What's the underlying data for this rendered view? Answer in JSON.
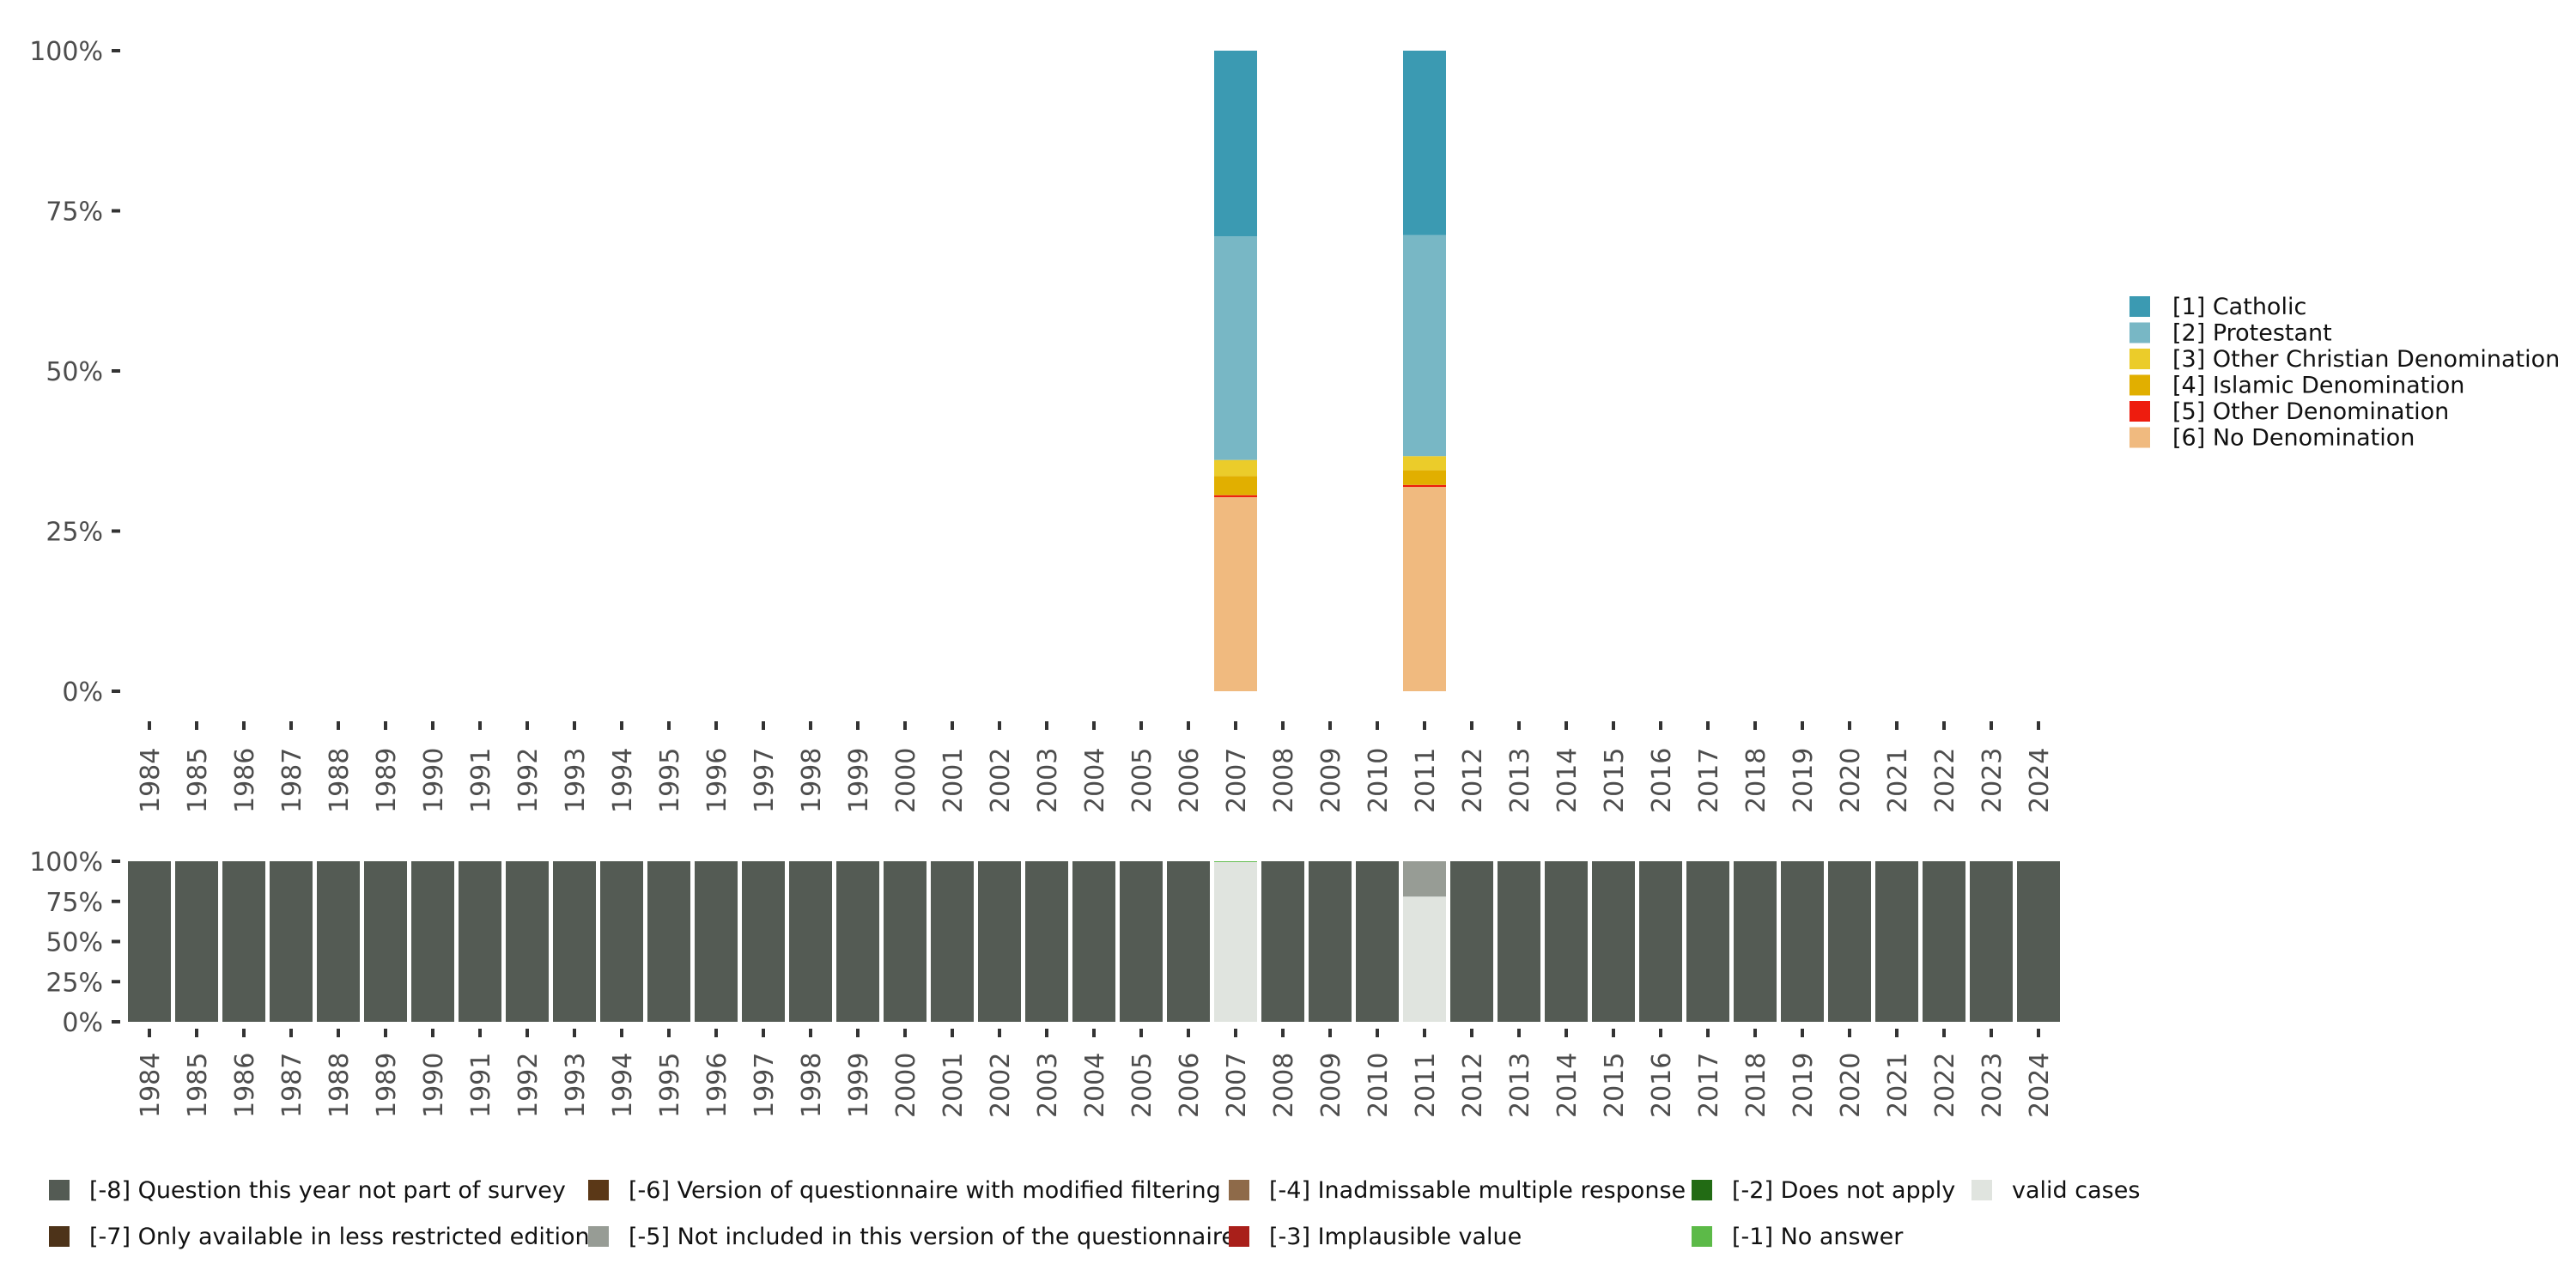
{
  "chart_data": [
    {
      "type": "bar",
      "stacked": true,
      "title": "",
      "xlabel": "",
      "ylabel": "",
      "ylim": [
        0,
        100
      ],
      "y_ticks": [
        "0%",
        "25%",
        "50%",
        "75%",
        "100%"
      ],
      "categories": [
        "1984",
        "1985",
        "1986",
        "1987",
        "1988",
        "1989",
        "1990",
        "1991",
        "1992",
        "1993",
        "1994",
        "1995",
        "1996",
        "1997",
        "1998",
        "1999",
        "2000",
        "2001",
        "2002",
        "2003",
        "2004",
        "2005",
        "2006",
        "2007",
        "2008",
        "2009",
        "2010",
        "2011",
        "2012",
        "2013",
        "2014",
        "2015",
        "2016",
        "2017",
        "2018",
        "2019",
        "2020",
        "2021",
        "2022",
        "2023",
        "2024"
      ],
      "legend_position": "right",
      "series": [
        {
          "name": "[6] No Denomination",
          "color": "#F0BA7F",
          "values": {
            "2007": 30.3,
            "2011": 31.9
          }
        },
        {
          "name": "[5] Other Denomination",
          "color": "#EE1C0E",
          "values": {
            "2007": 0.3,
            "2011": 0.3
          }
        },
        {
          "name": "[4] Islamic Denomination",
          "color": "#E1AF00",
          "values": {
            "2007": 3.0,
            "2011": 2.3
          }
        },
        {
          "name": "[3] Other Christian Denomination",
          "color": "#EBCC2A",
          "values": {
            "2007": 2.5,
            "2011": 2.2
          }
        },
        {
          "name": "[2] Protestant",
          "color": "#78B7C5",
          "values": {
            "2007": 34.9,
            "2011": 34.5
          }
        },
        {
          "name": "[1] Catholic",
          "color": "#3B9AB2",
          "values": {
            "2007": 29.0,
            "2011": 28.8
          }
        }
      ],
      "legend_order": [
        "[1] Catholic",
        "[2] Protestant",
        "[3] Other Christian Denomination",
        "[4] Islamic Denomination",
        "[5] Other Denomination",
        "[6] No Denomination"
      ]
    },
    {
      "type": "bar",
      "stacked": true,
      "ylim": [
        0,
        100
      ],
      "y_ticks": [
        "0%",
        "25%",
        "50%",
        "75%",
        "100%"
      ],
      "legend_position": "bottom",
      "default_category": "[-8] Question this year not part of survey",
      "special_values": {
        "2007": [
          {
            "name": "valid cases",
            "value": 99.5
          },
          {
            "name": "[-1] No answer",
            "value": 0.5
          }
        ],
        "2011": [
          {
            "name": "valid cases",
            "value": 78
          },
          {
            "name": "[-5] Not included in this version of the questionnaire",
            "value": 22
          }
        ]
      },
      "legend": [
        {
          "name": "[-8] Question this year not part of survey",
          "color": "#545B54"
        },
        {
          "name": "[-7] Only available in less restricted edition",
          "color": "#4D3319"
        },
        {
          "name": "[-6] Version of questionnaire with modified filtering",
          "color": "#5B3817"
        },
        {
          "name": "[-5] Not included in this version of the questionnaire",
          "color": "#979C95"
        },
        {
          "name": "[-4] Inadmissable multiple response",
          "color": "#8E6A49"
        },
        {
          "name": "[-3] Implausible value",
          "color": "#A91F1A"
        },
        {
          "name": "[-2] Does not apply",
          "color": "#226B14"
        },
        {
          "name": "[-1] No answer",
          "color": "#5CBA48"
        },
        {
          "name": "valid cases",
          "color": "#E0E4DF"
        }
      ]
    }
  ]
}
